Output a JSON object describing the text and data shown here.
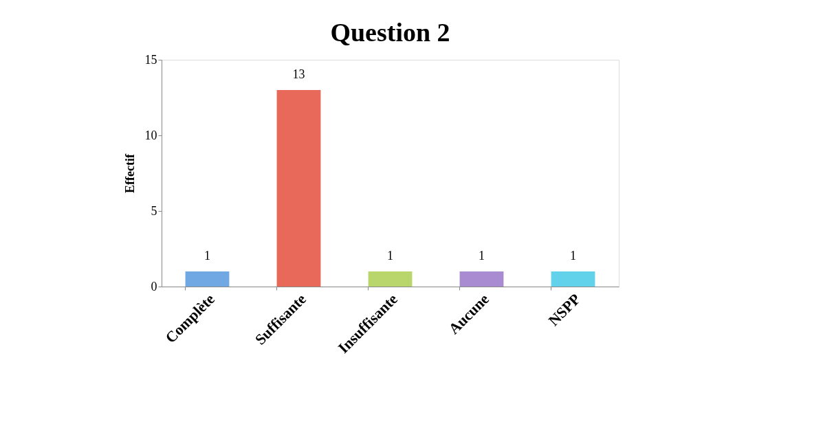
{
  "chart_data": {
    "type": "bar",
    "title": "Question 2",
    "ylabel": "Effectif",
    "categories": [
      "Complète",
      "Suffisante",
      "Insuffisante",
      "Aucune",
      "NSPP"
    ],
    "values": [
      1,
      13,
      1,
      1,
      1
    ],
    "colors": [
      "#6fa8e2",
      "#e8685a",
      "#b8d66c",
      "#a98bd2",
      "#62d2ea"
    ],
    "ylim": [
      0,
      15
    ],
    "yticks": [
      0,
      5,
      10,
      15
    ],
    "grid": false,
    "legend": false,
    "data_labels": true
  }
}
